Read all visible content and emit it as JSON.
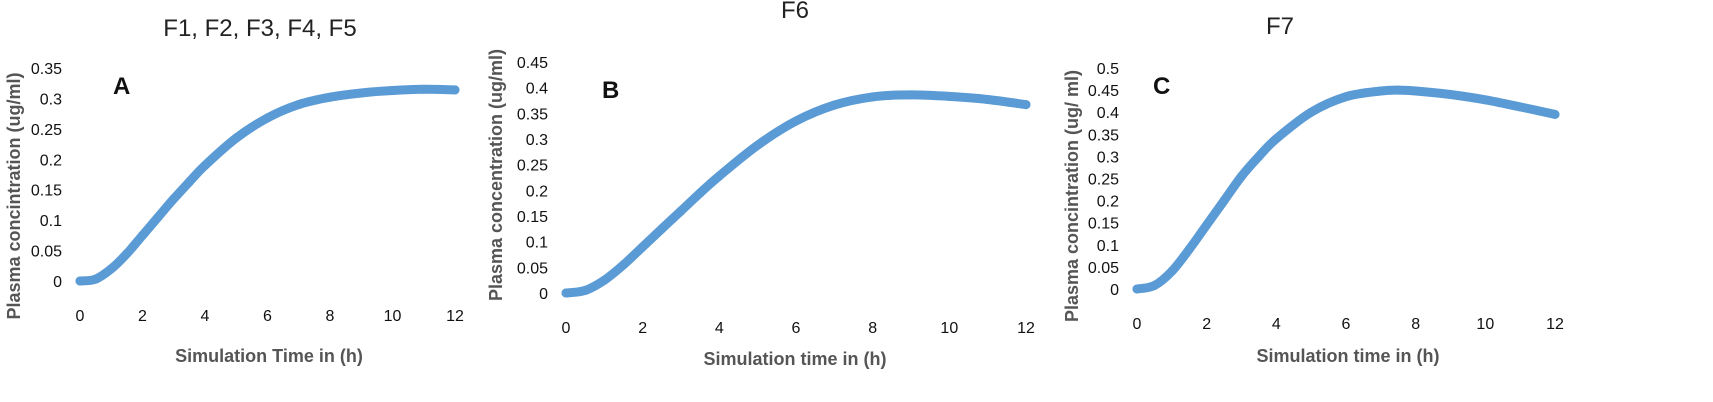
{
  "charts": [
    {
      "title": "F1, F2, F3, F4, F5",
      "panel_letter": "A",
      "xlabel": "Simulation Time in (h)",
      "ylabel": "Plasma concintration (ug/ml)",
      "x_ticks": [
        "0",
        "2",
        "4",
        "6",
        "8",
        "10",
        "12"
      ],
      "y_ticks": [
        "0",
        "0.05",
        "0.1",
        "0.15",
        "0.2",
        "0.25",
        "0.3",
        "0.35"
      ]
    },
    {
      "title": "F6",
      "panel_letter": "B",
      "xlabel": "Simulation time in (h)",
      "ylabel": "Plasma concentration (ug/ml)",
      "x_ticks": [
        "0",
        "2",
        "4",
        "6",
        "8",
        "10",
        "12"
      ],
      "y_ticks": [
        "0",
        "0.05",
        "0.1",
        "0.15",
        "0.2",
        "0.25",
        "0.3",
        "0.35",
        "0.4",
        "0.45"
      ]
    },
    {
      "title": "F7",
      "panel_letter": "C",
      "xlabel": "Simulation time in (h)",
      "ylabel": "Plasma concintration (ug/ ml)",
      "x_ticks": [
        "0",
        "2",
        "4",
        "6",
        "8",
        "10",
        "12"
      ],
      "y_ticks": [
        "0",
        "0.05",
        "0.1",
        "0.15",
        "0.2",
        "0.25",
        "0.3",
        "0.35",
        "0.4",
        "0.45",
        "0.5"
      ]
    }
  ],
  "chart_data": [
    {
      "type": "line",
      "title": "F1, F2, F3, F4, F5",
      "xlabel": "Simulation Time in (h)",
      "ylabel": "Plasma concintration (ug/ml)",
      "xlim": [
        0,
        12
      ],
      "ylim": [
        0,
        0.35
      ],
      "grid": false,
      "series_color": "#5b9bd5",
      "series": [
        {
          "x": [
            0,
            0.5,
            1,
            1.5,
            2,
            2.5,
            3,
            3.5,
            4,
            5,
            6,
            7,
            8,
            9,
            10,
            11,
            12
          ],
          "values": [
            0,
            0.003,
            0.02,
            0.045,
            0.075,
            0.105,
            0.135,
            0.163,
            0.19,
            0.235,
            0.268,
            0.29,
            0.302,
            0.309,
            0.313,
            0.315,
            0.314
          ]
        }
      ]
    },
    {
      "type": "line",
      "title": "F6",
      "xlabel": "Simulation time in (h)",
      "ylabel": "Plasma concentration (ug/ml)",
      "xlim": [
        0,
        12
      ],
      "ylim": [
        0,
        0.45
      ],
      "grid": false,
      "series_color": "#5b9bd5",
      "series": [
        {
          "x": [
            0,
            0.5,
            1,
            1.5,
            2,
            2.5,
            3,
            3.5,
            4,
            5,
            6,
            7,
            8,
            9,
            10,
            11,
            12
          ],
          "values": [
            0,
            0.005,
            0.025,
            0.055,
            0.09,
            0.125,
            0.16,
            0.195,
            0.228,
            0.288,
            0.335,
            0.366,
            0.382,
            0.386,
            0.383,
            0.377,
            0.367
          ]
        }
      ]
    },
    {
      "type": "line",
      "title": "F7",
      "xlabel": "Simulation time in (h)",
      "ylabel": "Plasma concintration (ug/ ml)",
      "xlim": [
        0,
        12
      ],
      "ylim": [
        0,
        0.5
      ],
      "grid": false,
      "series_color": "#5b9bd5",
      "series": [
        {
          "x": [
            0,
            0.5,
            1,
            1.5,
            2,
            2.5,
            3,
            3.5,
            4,
            5,
            6,
            7,
            7.5,
            8,
            9,
            10,
            11,
            12
          ],
          "values": [
            0,
            0.008,
            0.04,
            0.09,
            0.145,
            0.2,
            0.255,
            0.3,
            0.34,
            0.4,
            0.435,
            0.448,
            0.45,
            0.448,
            0.44,
            0.428,
            0.412,
            0.395
          ]
        }
      ]
    }
  ]
}
